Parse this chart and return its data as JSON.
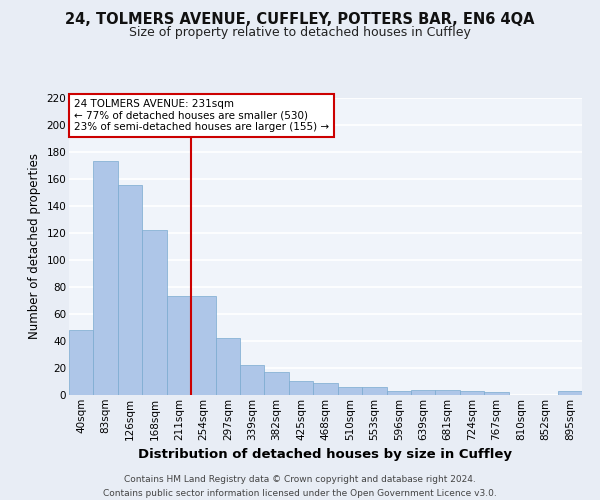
{
  "title_line1": "24, TOLMERS AVENUE, CUFFLEY, POTTERS BAR, EN6 4QA",
  "title_line2": "Size of property relative to detached houses in Cuffley",
  "xlabel": "Distribution of detached houses by size in Cuffley",
  "ylabel": "Number of detached properties",
  "categories": [
    "40sqm",
    "83sqm",
    "126sqm",
    "168sqm",
    "211sqm",
    "254sqm",
    "297sqm",
    "339sqm",
    "382sqm",
    "425sqm",
    "468sqm",
    "510sqm",
    "553sqm",
    "596sqm",
    "639sqm",
    "681sqm",
    "724sqm",
    "767sqm",
    "810sqm",
    "852sqm",
    "895sqm"
  ],
  "values": [
    48,
    173,
    155,
    122,
    73,
    73,
    42,
    22,
    17,
    10,
    9,
    6,
    6,
    3,
    4,
    4,
    3,
    2,
    0,
    0,
    3
  ],
  "bar_color": "#aec6e8",
  "bar_edge_color": "#7aaad0",
  "bar_width": 1.0,
  "property_line_color": "#cc0000",
  "annotation_text": "24 TOLMERS AVENUE: 231sqm\n← 77% of detached houses are smaller (530)\n23% of semi-detached houses are larger (155) →",
  "annotation_box_color": "#ffffff",
  "annotation_box_edge": "#cc0000",
  "ylim": [
    0,
    220
  ],
  "yticks": [
    0,
    20,
    40,
    60,
    80,
    100,
    120,
    140,
    160,
    180,
    200,
    220
  ],
  "footnote": "Contains HM Land Registry data © Crown copyright and database right 2024.\nContains public sector information licensed under the Open Government Licence v3.0.",
  "bg_color": "#e8edf5",
  "plot_bg_color": "#f0f4fa",
  "grid_color": "#ffffff",
  "title1_fontsize": 10.5,
  "title2_fontsize": 9,
  "xlabel_fontsize": 9.5,
  "ylabel_fontsize": 8.5,
  "tick_fontsize": 7.5,
  "annotation_fontsize": 7.5,
  "footnote_fontsize": 6.5
}
